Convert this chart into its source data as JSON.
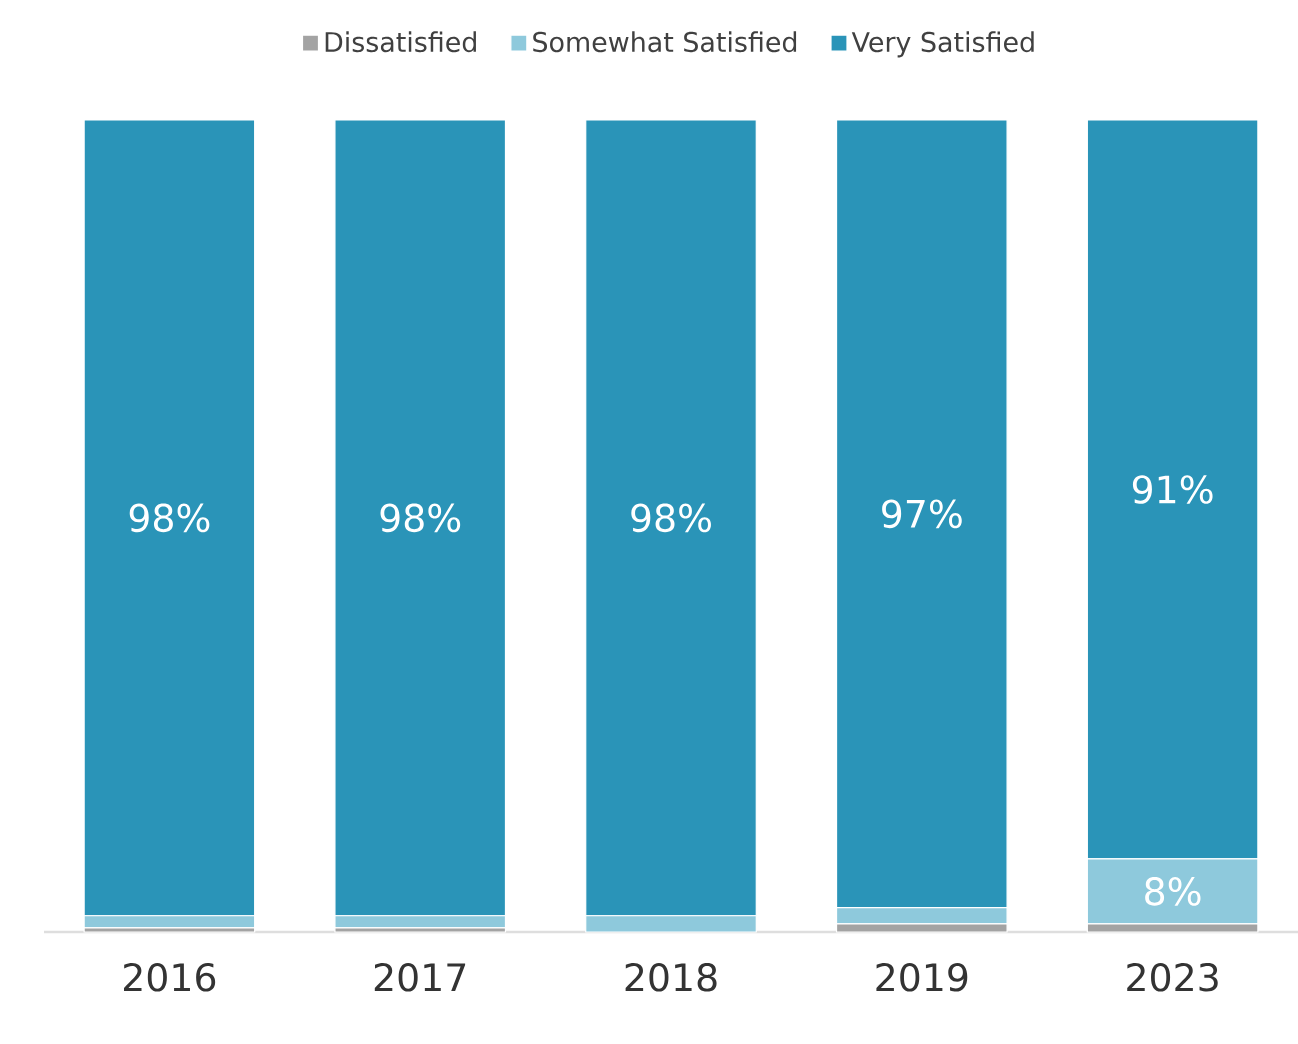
{
  "chart_data": {
    "type": "bar",
    "stacked": true,
    "legend": "top",
    "categories": [
      "2016",
      "2017",
      "2018",
      "2019",
      "2023"
    ],
    "tick_labels": "x",
    "series": [
      {
        "name": "Dissatisfied",
        "color": "#a3a3a3",
        "values": [
          0.5,
          0.5,
          0,
          1,
          1
        ]
      },
      {
        "name": "Somewhat Satisfied",
        "color": "#8ec9dc",
        "values": [
          1.5,
          1.5,
          2,
          2,
          8
        ],
        "value_labels": [
          null,
          null,
          null,
          null,
          "8%"
        ]
      },
      {
        "name": "Very Satisfied",
        "color": "#2a94b8",
        "values": [
          98,
          98,
          98,
          97,
          91
        ],
        "value_labels": [
          "98%",
          "98%",
          "98%",
          "97%",
          "91%"
        ]
      }
    ]
  }
}
